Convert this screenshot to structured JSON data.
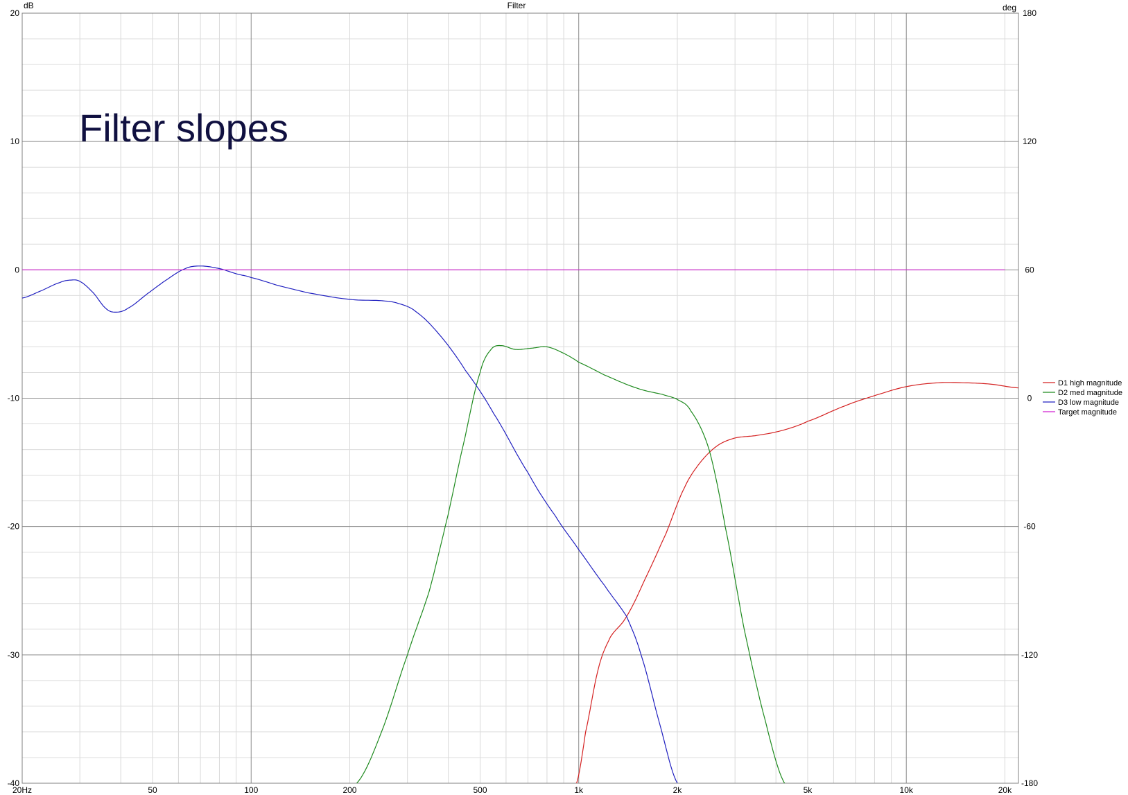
{
  "chart_data": {
    "type": "line",
    "title": "Filter",
    "annotation": "Filter slopes",
    "y_left_unit": "dB",
    "y_right_unit": "deg",
    "x_scale": "log",
    "xlim": [
      20,
      22000
    ],
    "ylim": [
      -40,
      20
    ],
    "y_right_lim": [
      -180,
      180
    ],
    "x_ticks": [
      {
        "value": 20,
        "label": "20Hz"
      },
      {
        "value": 50,
        "label": "50"
      },
      {
        "value": 100,
        "label": "100"
      },
      {
        "value": 200,
        "label": "200"
      },
      {
        "value": 500,
        "label": "500"
      },
      {
        "value": 1000,
        "label": "1k"
      },
      {
        "value": 2000,
        "label": "2k"
      },
      {
        "value": 5000,
        "label": "5k"
      },
      {
        "value": 10000,
        "label": "10k"
      },
      {
        "value": 20000,
        "label": "20k"
      }
    ],
    "y_ticks": [
      {
        "value": 20,
        "label": "20"
      },
      {
        "value": 10,
        "label": "10"
      },
      {
        "value": 0,
        "label": "0"
      },
      {
        "value": -10,
        "label": "-10"
      },
      {
        "value": -20,
        "label": "-20"
      },
      {
        "value": -30,
        "label": "-30"
      },
      {
        "value": -40,
        "label": "-40"
      }
    ],
    "y_right_ticks": [
      {
        "value": 180,
        "label": "180"
      },
      {
        "value": 120,
        "label": "120"
      },
      {
        "value": 60,
        "label": "60"
      },
      {
        "value": 0,
        "label": "0"
      },
      {
        "value": -60,
        "label": "-60"
      },
      {
        "value": -120,
        "label": "-120"
      },
      {
        "value": -180,
        "label": "-180"
      }
    ],
    "grid": true,
    "legend_position": "right",
    "series": [
      {
        "name": "D1 high magnitude",
        "color": "#d42020",
        "points": [
          [
            985,
            -40
          ],
          [
            1050,
            -36
          ],
          [
            1150,
            -31
          ],
          [
            1250,
            -28.6
          ],
          [
            1400,
            -27
          ],
          [
            1600,
            -24
          ],
          [
            1850,
            -20.5
          ],
          [
            2100,
            -17
          ],
          [
            2350,
            -15
          ],
          [
            2650,
            -13.7
          ],
          [
            3000,
            -13.1
          ],
          [
            3500,
            -12.9
          ],
          [
            4200,
            -12.5
          ],
          [
            5000,
            -11.8
          ],
          [
            6500,
            -10.6
          ],
          [
            8000,
            -9.8
          ],
          [
            10000,
            -9.1
          ],
          [
            12500,
            -8.8
          ],
          [
            15000,
            -8.8
          ],
          [
            18000,
            -8.9
          ],
          [
            22000,
            -9.2
          ]
        ]
      },
      {
        "name": "D2 med magnitude",
        "color": "#1e8a1e",
        "points": [
          [
            210,
            -40
          ],
          [
            250,
            -36
          ],
          [
            300,
            -30
          ],
          [
            350,
            -25
          ],
          [
            400,
            -19
          ],
          [
            450,
            -13
          ],
          [
            500,
            -8
          ],
          [
            540,
            -6.2
          ],
          [
            580,
            -5.9
          ],
          [
            640,
            -6.2
          ],
          [
            720,
            -6.1
          ],
          [
            800,
            -6.0
          ],
          [
            900,
            -6.5
          ],
          [
            1000,
            -7.2
          ],
          [
            1200,
            -8.2
          ],
          [
            1500,
            -9.2
          ],
          [
            1800,
            -9.7
          ],
          [
            2000,
            -10.1
          ],
          [
            2200,
            -11
          ],
          [
            2500,
            -14
          ],
          [
            2800,
            -20
          ],
          [
            3200,
            -28
          ],
          [
            3700,
            -35
          ],
          [
            4250,
            -40
          ]
        ]
      },
      {
        "name": "D3 low magnitude",
        "color": "#2020c0",
        "points": [
          [
            20,
            -2.2
          ],
          [
            23,
            -1.6
          ],
          [
            26,
            -1.0
          ],
          [
            28,
            -0.8
          ],
          [
            30,
            -0.9
          ],
          [
            33,
            -1.8
          ],
          [
            36,
            -3.0
          ],
          [
            38.5,
            -3.3
          ],
          [
            42,
            -3.0
          ],
          [
            48,
            -1.9
          ],
          [
            55,
            -0.8
          ],
          [
            63,
            0.1
          ],
          [
            70,
            0.3
          ],
          [
            80,
            0.1
          ],
          [
            90,
            -0.3
          ],
          [
            100,
            -0.6
          ],
          [
            120,
            -1.2
          ],
          [
            150,
            -1.8
          ],
          [
            200,
            -2.3
          ],
          [
            250,
            -2.4
          ],
          [
            280,
            -2.6
          ],
          [
            320,
            -3.3
          ],
          [
            380,
            -5.2
          ],
          [
            450,
            -7.8
          ],
          [
            550,
            -11.2
          ],
          [
            700,
            -15.8
          ],
          [
            850,
            -19.2
          ],
          [
            1000,
            -21.8
          ],
          [
            1200,
            -24.6
          ],
          [
            1400,
            -27.0
          ],
          [
            1550,
            -30.0
          ],
          [
            1750,
            -35.0
          ],
          [
            2000,
            -40
          ]
        ]
      },
      {
        "name": "Target magnitude",
        "color": "#d020d0",
        "points": [
          [
            20,
            0
          ],
          [
            20000,
            0
          ]
        ]
      }
    ]
  }
}
